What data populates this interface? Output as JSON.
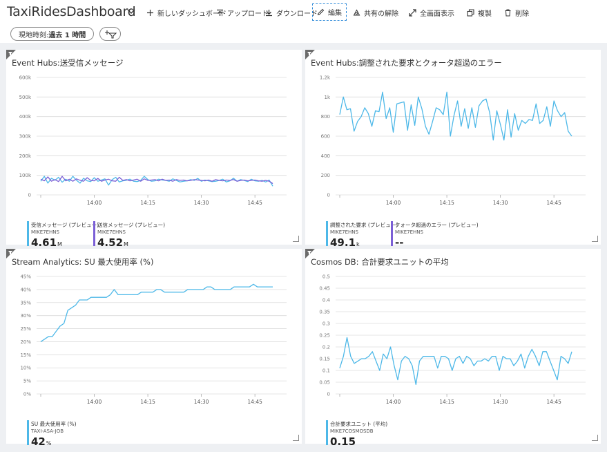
{
  "header": {
    "title": "TaxiRidesDashboard",
    "buttons": {
      "new": "新しいダッシュボード",
      "upload": "アップロード",
      "download": "ダウンロード",
      "edit": "編集",
      "unshare": "共有の解除",
      "fullscreen": "全画面表示",
      "clone": "複製",
      "delete": "削除"
    }
  },
  "filter": {
    "prefix": "現地時刻: ",
    "value": "過去 1 時間"
  },
  "colors": {
    "accent": "#2b88d8",
    "series_blue": "#4db8e8",
    "series_purple": "#7b5fd6",
    "grid": "#dcdcdc"
  },
  "tiles": [
    {
      "title": "Event Hubs:送受信メッセージ",
      "legend": [
        {
          "name": "受信メッセージ (プレビュー)",
          "sub": "MIKE7EHNS",
          "value": "4.61",
          "unit": "M",
          "color": "#4db8e8"
        },
        {
          "name": "送信メッセージ (プレビュー)",
          "sub": "MIKE7EHNS",
          "value": "4.52",
          "unit": "M",
          "color": "#7b5fd6"
        }
      ]
    },
    {
      "title": "Event Hubs:調整された要求とクォータ超過のエラー",
      "legend": [
        {
          "name": "調整された要求 (プレビュー)",
          "sub": "MIKE7EHNS",
          "value": "49.1",
          "unit": "k",
          "color": "#4db8e8"
        },
        {
          "name": "クォータ超過のエラー (プレビュー)",
          "sub": "MIKE7EHNS",
          "value": "--",
          "unit": "",
          "color": "#7b5fd6"
        }
      ]
    },
    {
      "title": "Stream Analytics: SU 最大使用率 (%)",
      "legend": [
        {
          "name": "SU 最大使用率 (%)",
          "sub": "TAXI-ASA-JOB",
          "value": "42",
          "unit": "%",
          "color": "#4db8e8"
        }
      ]
    },
    {
      "title": "Cosmos DB: 合計要求ユニットの平均",
      "legend": [
        {
          "name": "合計要求ユニット (平均)",
          "sub": "MIKE7COSMOSDB",
          "value": "0.15",
          "unit": "",
          "color": "#4db8e8"
        }
      ]
    }
  ],
  "chart_data": [
    {
      "type": "line",
      "title": "Event Hubs:送受信メッセージ",
      "x": [
        "13:45",
        "13:46",
        "13:47",
        "13:48",
        "13:49",
        "13:50",
        "13:51",
        "13:52",
        "13:53",
        "13:54",
        "13:55",
        "13:56",
        "13:57",
        "13:58",
        "13:59",
        "14:00",
        "14:01",
        "14:02",
        "14:03",
        "14:04",
        "14:05",
        "14:06",
        "14:07",
        "14:08",
        "14:09",
        "14:10",
        "14:11",
        "14:12",
        "14:13",
        "14:14",
        "14:15",
        "14:16",
        "14:17",
        "14:18",
        "14:19",
        "14:20",
        "14:21",
        "14:22",
        "14:23",
        "14:24",
        "14:25",
        "14:26",
        "14:27",
        "14:28",
        "14:29",
        "14:30",
        "14:31",
        "14:32",
        "14:33",
        "14:34",
        "14:35",
        "14:36",
        "14:37",
        "14:38",
        "14:39",
        "14:40",
        "14:41",
        "14:42",
        "14:43",
        "14:44",
        "14:45",
        "14:46",
        "14:47",
        "14:48",
        "14:49",
        "14:50"
      ],
      "xticks": [
        "14:00",
        "14:15",
        "14:30",
        "14:45"
      ],
      "yticks": [
        "0",
        "100k",
        "200k",
        "300k",
        "400k",
        "500k",
        "600k"
      ],
      "ylim": [
        0,
        600000
      ],
      "series": [
        {
          "name": "受信メッセージ (プレビュー)",
          "color": "#4db8e8",
          "values": [
            70000,
            95000,
            60000,
            85000,
            75000,
            90000,
            65000,
            80000,
            70000,
            95000,
            75000,
            60000,
            85000,
            72000,
            68000,
            88000,
            70000,
            76000,
            82000,
            50000,
            78000,
            90000,
            66000,
            72000,
            75000,
            80000,
            70000,
            68000,
            74000,
            95000,
            78000,
            70000,
            72000,
            80000,
            76000,
            74000,
            70000,
            82000,
            74000,
            66000,
            70000,
            72000,
            78000,
            74000,
            84000,
            70000,
            76000,
            72000,
            68000,
            70000,
            74000,
            80000,
            66000,
            72000,
            85000,
            70000,
            78000,
            74000,
            68000,
            80000,
            72000,
            70000,
            74000,
            66000,
            76000,
            45000
          ]
        },
        {
          "name": "送信メッセージ (プレビュー)",
          "color": "#7b5fd6",
          "values": [
            80000,
            72000,
            92000,
            70000,
            78000,
            68000,
            95000,
            72000,
            80000,
            70000,
            82000,
            75000,
            70000,
            88000,
            74000,
            72000,
            84000,
            70000,
            76000,
            80000,
            72000,
            70000,
            90000,
            74000,
            78000,
            72000,
            76000,
            80000,
            70000,
            82000,
            74000,
            76000,
            78000,
            72000,
            80000,
            74000,
            76000,
            70000,
            78000,
            74000,
            76000,
            72000,
            74000,
            78000,
            76000,
            74000,
            72000,
            76000,
            70000,
            78000,
            74000,
            72000,
            76000,
            74000,
            78000,
            70000,
            74000,
            76000,
            72000,
            74000,
            76000,
            72000,
            70000,
            74000,
            70000,
            58000
          ]
        }
      ]
    },
    {
      "type": "line",
      "title": "Event Hubs:調整された要求とクォータ超過のエラー",
      "xticks": [
        "14:00",
        "14:15",
        "14:30",
        "14:45"
      ],
      "yticks": [
        "0",
        "200",
        "400",
        "600",
        "800",
        "1k",
        "1.2k"
      ],
      "ylim": [
        0,
        1200
      ],
      "series": [
        {
          "name": "調整された要求 (プレビュー)",
          "color": "#4db8e8",
          "values": [
            820,
            1000,
            870,
            880,
            650,
            750,
            800,
            890,
            830,
            700,
            860,
            850,
            1050,
            780,
            890,
            640,
            930,
            940,
            950,
            660,
            920,
            710,
            1000,
            880,
            700,
            620,
            750,
            890,
            870,
            820,
            1050,
            600,
            810,
            960,
            700,
            880,
            680,
            890,
            690,
            910,
            960,
            980,
            840,
            560,
            860,
            720,
            560,
            870,
            590,
            830,
            660,
            760,
            730,
            770,
            760,
            930,
            730,
            760,
            900,
            700,
            960,
            860,
            800,
            840,
            650,
            600
          ]
        }
      ]
    },
    {
      "type": "line",
      "title": "Stream Analytics: SU 最大使用率 (%)",
      "xticks": [
        "14:00",
        "14:15",
        "14:30",
        "14:45"
      ],
      "yticks": [
        "0%",
        "5%",
        "10%",
        "15%",
        "20%",
        "25%",
        "30%",
        "35%",
        "40%",
        "45%"
      ],
      "ylim": [
        0,
        45
      ],
      "series": [
        {
          "name": "SU 最大使用率 (%)",
          "color": "#4db8e8",
          "values": [
            20,
            21,
            22,
            22,
            24,
            26,
            27,
            32,
            33,
            34,
            36,
            36,
            36,
            37,
            37,
            37,
            37,
            37,
            38,
            40,
            38,
            38,
            38,
            38,
            38,
            38,
            39,
            39,
            39,
            39,
            40,
            40,
            39,
            39,
            39,
            39,
            39,
            39,
            40,
            40,
            40,
            40,
            40,
            41,
            41,
            40,
            40,
            40,
            40,
            40,
            41,
            41,
            41,
            41,
            41,
            42,
            41,
            41,
            41,
            41,
            41
          ]
        }
      ]
    },
    {
      "type": "line",
      "title": "Cosmos DB: 合計要求ユニットの平均",
      "xticks": [
        "14:00",
        "14:15",
        "14:30",
        "14:45"
      ],
      "yticks": [
        "0",
        "0.05",
        "0.1",
        "0.15",
        "0.2",
        "0.25",
        "0.3",
        "0.35",
        "0.4",
        "0.45",
        "0.5"
      ],
      "ylim": [
        0,
        0.5
      ],
      "series": [
        {
          "name": "合計要求ユニット (平均)",
          "color": "#4db8e8",
          "values": [
            0.11,
            0.16,
            0.24,
            0.16,
            0.13,
            0.14,
            0.15,
            0.15,
            0.16,
            0.18,
            0.14,
            0.1,
            0.17,
            0.15,
            0.2,
            0.12,
            0.06,
            0.14,
            0.16,
            0.15,
            0.12,
            0.04,
            0.14,
            0.16,
            0.16,
            0.16,
            0.16,
            0.11,
            0.16,
            0.16,
            0.15,
            0.1,
            0.15,
            0.16,
            0.13,
            0.16,
            0.15,
            0.12,
            0.14,
            0.14,
            0.15,
            0.14,
            0.16,
            0.16,
            0.1,
            0.16,
            0.15,
            0.15,
            0.12,
            0.14,
            0.17,
            0.11,
            0.16,
            0.19,
            0.16,
            0.12,
            0.18,
            0.18,
            0.14,
            0.1,
            0.06,
            0.16,
            0.15,
            0.13,
            0.18
          ]
        }
      ]
    }
  ]
}
